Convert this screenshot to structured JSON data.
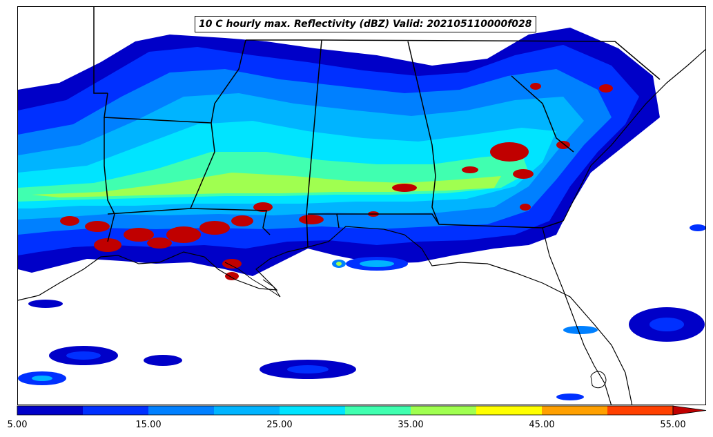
{
  "map": {
    "title": "10 C hourly max. Reflectivity (dBZ) Valid: 202105110000f028",
    "field": "hourly max reflectivity",
    "units": "dBZ",
    "region": "Southeastern United States and Gulf of Mexico",
    "background_color": "#ffffff",
    "boundary_color": "#000000"
  },
  "colorbar": {
    "levels": [
      5,
      10,
      15,
      20,
      25,
      30,
      35,
      40,
      45,
      50,
      55
    ],
    "colors": [
      "#0000c8",
      "#0030ff",
      "#0080ff",
      "#00b4ff",
      "#00e4ff",
      "#40ffb0",
      "#a0ff50",
      "#ffff00",
      "#ffa000",
      "#ff4000",
      "#c00000"
    ],
    "extend": "max",
    "tick_labels": [
      "5.00",
      "15.00",
      "25.00",
      "35.00",
      "45.00",
      "55.00"
    ]
  }
}
